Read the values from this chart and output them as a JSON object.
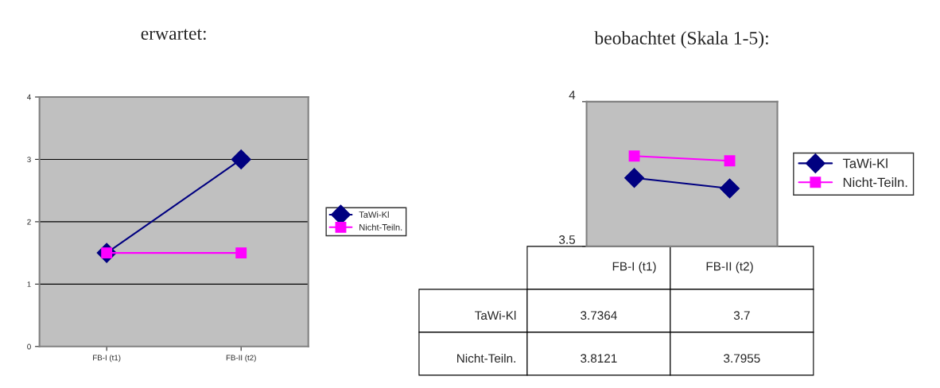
{
  "chart_data": [
    {
      "type": "line",
      "title": "erwartet:",
      "categories": [
        "FB-I (t1)",
        "FB-II (t2)"
      ],
      "ylim": [
        0,
        4
      ],
      "yticks": [
        0,
        1,
        2,
        3,
        4
      ],
      "grid": "y",
      "legend": "right",
      "series": [
        {
          "name": "TaWi-Kl",
          "color": "#000080",
          "values": [
            1.5,
            3
          ],
          "marker": "diamond"
        },
        {
          "name": "Nicht-Teiln.",
          "color": "#ff00ff",
          "values": [
            1.5,
            1.5
          ],
          "marker": "square"
        }
      ]
    },
    {
      "type": "line",
      "title": "beobachtet (Skala 1-5):",
      "categories": [
        "FB-I (t1)",
        "FB-II (t2)"
      ],
      "ylim": [
        3.5,
        4
      ],
      "yticks": [
        3.5,
        4
      ],
      "legend": "right",
      "data_labels": true,
      "series": [
        {
          "name": "TaWi-Kl",
          "color": "#000080",
          "values": [
            3.7364,
            3.7
          ],
          "marker": "diamond"
        },
        {
          "name": "Nicht-Teiln.",
          "color": "#ff00ff",
          "values": [
            3.8121,
            3.7955
          ],
          "marker": "square"
        }
      ]
    }
  ]
}
